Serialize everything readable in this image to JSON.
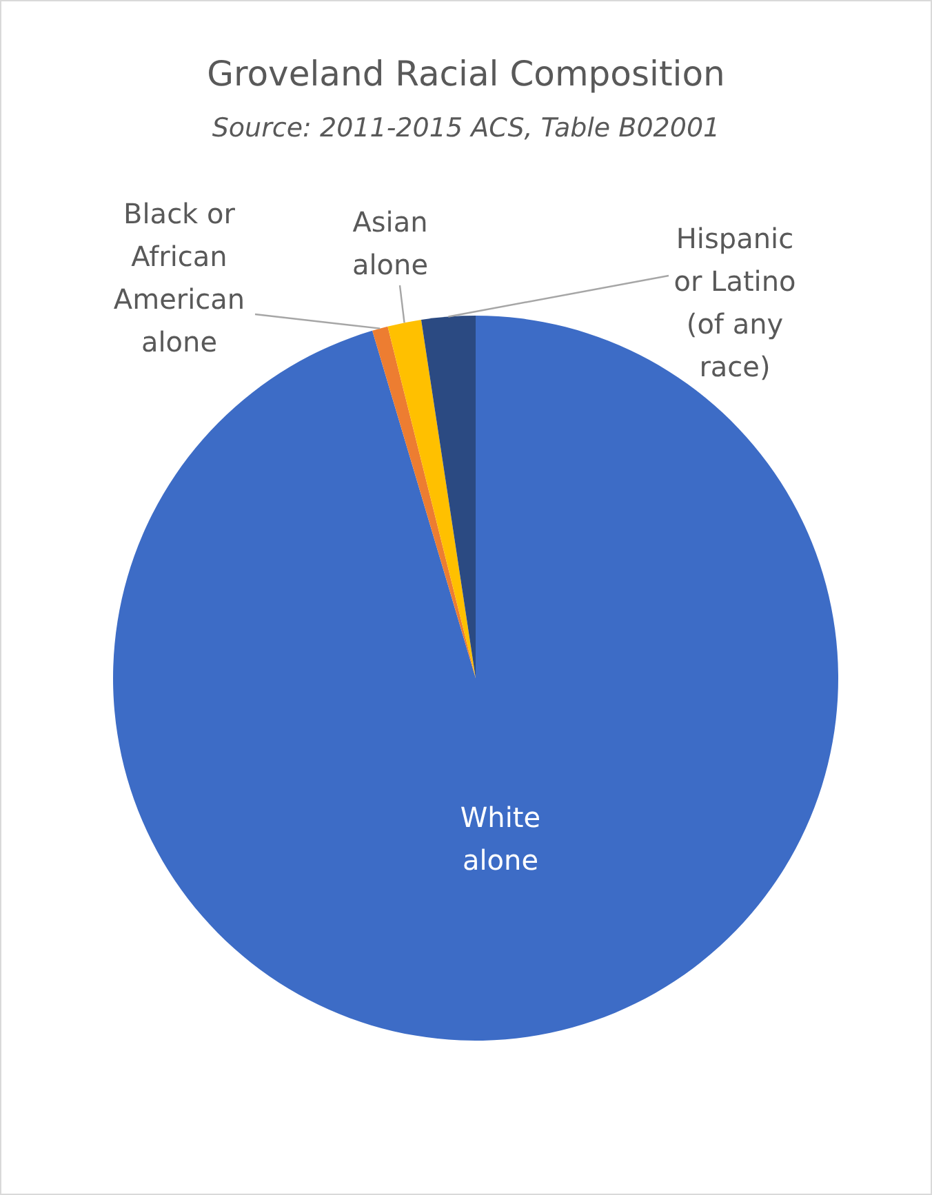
{
  "chart_data": {
    "type": "pie",
    "title": "Groveland Racial Composition",
    "subtitle": "Source: 2011-2015 ACS, Table B02001",
    "categories": [
      "White alone",
      "Black or African American alone",
      "Asian alone",
      "Hispanic or Latino (of any race)"
    ],
    "values": [
      95.4,
      0.7,
      1.5,
      2.4
    ],
    "colors": [
      "#3d6cc6",
      "#ed7d31",
      "#ffc000",
      "#2b4a82"
    ]
  }
}
